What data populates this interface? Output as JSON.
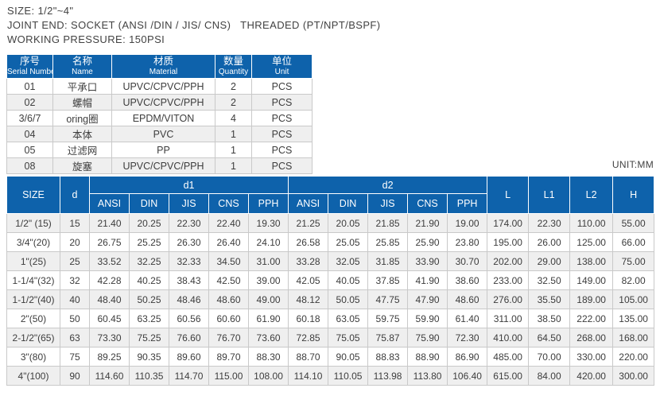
{
  "info": {
    "lines": [
      "SIZE: 1/2\"~4\"",
      "JOINT END: SOCKET (ANSI /DIN / JIS/ CNS)   THREADED (PT/NPT/BSPF)",
      "WORKING PRESSURE: 150PSI"
    ]
  },
  "parts_table": {
    "headers": [
      {
        "zh": "序号",
        "en": "Serial Number"
      },
      {
        "zh": "名称",
        "en": "Name"
      },
      {
        "zh": "材质",
        "en": "Material"
      },
      {
        "zh": "数量",
        "en": "Quantity"
      },
      {
        "zh": "单位",
        "en": "Unit"
      }
    ],
    "rows": [
      [
        "01",
        "平承口",
        "UPVC/CPVC/PPH",
        "2",
        "PCS"
      ],
      [
        "02",
        "螺帽",
        "UPVC/CPVC/PPH",
        "2",
        "PCS"
      ],
      [
        "3/6/7",
        "oring圈",
        "EPDM/VITON",
        "4",
        "PCS"
      ],
      [
        "04",
        "本体",
        "PVC",
        "1",
        "PCS"
      ],
      [
        "05",
        "过滤网",
        "PP",
        "1",
        "PCS"
      ],
      [
        "08",
        "旋塞",
        "UPVC/CPVC/PPH",
        "1",
        "PCS"
      ]
    ]
  },
  "dimensions_table": {
    "unit_note": "UNIT:MM",
    "size_header": "SIZE",
    "d_header": "d",
    "group_headers": [
      "d1",
      "d2"
    ],
    "sub_headers": [
      "ANSI",
      "DIN",
      "JIS",
      "CNS",
      "PPH"
    ],
    "tail_headers": [
      "L",
      "L1",
      "L2",
      "H"
    ],
    "rows": [
      {
        "size": "1/2\" (15)",
        "d": "15",
        "d1": [
          "21.40",
          "20.25",
          "22.30",
          "22.40",
          "19.30"
        ],
        "d2": [
          "21.25",
          "20.05",
          "21.85",
          "21.90",
          "19.00"
        ],
        "tail": [
          "174.00",
          "22.30",
          "110.00",
          "55.00"
        ]
      },
      {
        "size": "3/4\"(20)",
        "d": "20",
        "d1": [
          "26.75",
          "25.25",
          "26.30",
          "26.40",
          "24.10"
        ],
        "d2": [
          "26.58",
          "25.05",
          "25.85",
          "25.90",
          "23.80"
        ],
        "tail": [
          "195.00",
          "26.00",
          "125.00",
          "66.00"
        ]
      },
      {
        "size": "1\"(25)",
        "d": "25",
        "d1": [
          "33.52",
          "32.25",
          "32.33",
          "34.50",
          "31.00"
        ],
        "d2": [
          "33.28",
          "32.05",
          "31.85",
          "33.90",
          "30.70"
        ],
        "tail": [
          "202.00",
          "29.00",
          "138.00",
          "75.00"
        ]
      },
      {
        "size": "1-1/4\"(32)",
        "d": "32",
        "d1": [
          "42.28",
          "40.25",
          "38.43",
          "42.50",
          "39.00"
        ],
        "d2": [
          "42.05",
          "40.05",
          "37.85",
          "41.90",
          "38.60"
        ],
        "tail": [
          "233.00",
          "32.50",
          "149.00",
          "82.00"
        ]
      },
      {
        "size": "1-1/2\"(40)",
        "d": "40",
        "d1": [
          "48.40",
          "50.25",
          "48.46",
          "48.60",
          "49.00"
        ],
        "d2": [
          "48.12",
          "50.05",
          "47.75",
          "47.90",
          "48.60"
        ],
        "tail": [
          "276.00",
          "35.50",
          "189.00",
          "105.00"
        ]
      },
      {
        "size": "2\"(50)",
        "d": "50",
        "d1": [
          "60.45",
          "63.25",
          "60.56",
          "60.60",
          "61.90"
        ],
        "d2": [
          "60.18",
          "63.05",
          "59.75",
          "59.90",
          "61.40"
        ],
        "tail": [
          "311.00",
          "38.50",
          "222.00",
          "135.00"
        ]
      },
      {
        "size": "2-1/2\"(65)",
        "d": "63",
        "d1": [
          "73.30",
          "75.25",
          "76.60",
          "76.70",
          "73.60"
        ],
        "d2": [
          "72.85",
          "75.05",
          "75.87",
          "75.90",
          "72.30"
        ],
        "tail": [
          "410.00",
          "64.50",
          "268.00",
          "168.00"
        ]
      },
      {
        "size": "3\"(80)",
        "d": "75",
        "d1": [
          "89.25",
          "90.35",
          "89.60",
          "89.70",
          "88.30"
        ],
        "d2": [
          "88.70",
          "90.05",
          "88.83",
          "88.90",
          "86.90"
        ],
        "tail": [
          "485.00",
          "70.00",
          "330.00",
          "220.00"
        ]
      },
      {
        "size": "4\"(100)",
        "d": "90",
        "d1": [
          "114.60",
          "110.35",
          "114.70",
          "115.00",
          "108.00"
        ],
        "d2": [
          "114.10",
          "110.05",
          "113.98",
          "113.80",
          "106.40"
        ],
        "tail": [
          "615.00",
          "84.00",
          "420.00",
          "300.00"
        ]
      }
    ]
  },
  "colors": {
    "header_blue": "#0e62ab",
    "row_stripe": "#efefef",
    "border_gray": "#c9c9c9",
    "text": "#3c3c3c"
  }
}
